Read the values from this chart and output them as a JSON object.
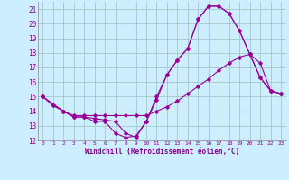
{
  "xlabel": "Windchill (Refroidissement éolien,°C)",
  "bg_color": "#cceeff",
  "grid_color": "#aacccc",
  "line_color": "#990099",
  "xlim": [
    -0.5,
    23.5
  ],
  "ylim": [
    12,
    21.5
  ],
  "xticks": [
    0,
    1,
    2,
    3,
    4,
    5,
    6,
    7,
    8,
    9,
    10,
    11,
    12,
    13,
    14,
    15,
    16,
    17,
    18,
    19,
    20,
    21,
    22,
    23
  ],
  "yticks": [
    12,
    13,
    14,
    15,
    16,
    17,
    18,
    19,
    20,
    21
  ],
  "lines": [
    {
      "x": [
        0,
        1,
        2,
        3,
        4,
        5,
        6,
        7,
        8,
        9,
        10,
        11,
        12,
        13,
        14,
        15,
        16,
        17,
        18,
        19,
        20,
        21,
        22,
        23
      ],
      "y": [
        15.0,
        14.4,
        14.0,
        13.6,
        13.6,
        13.3,
        13.3,
        12.5,
        12.2,
        12.3,
        13.3,
        15.0,
        16.5,
        17.5,
        18.3,
        20.3,
        21.2,
        21.2,
        20.7,
        19.5,
        17.9,
        16.3,
        15.4,
        15.2
      ]
    },
    {
      "x": [
        0,
        1,
        2,
        3,
        4,
        5,
        6,
        7,
        8,
        9,
        10,
        11,
        12,
        13,
        14,
        15,
        16,
        17,
        18,
        19,
        20,
        21,
        22,
        23
      ],
      "y": [
        15.0,
        14.4,
        14.0,
        13.7,
        13.7,
        13.7,
        13.7,
        13.7,
        13.7,
        13.7,
        13.7,
        14.0,
        14.3,
        14.7,
        15.2,
        15.7,
        16.2,
        16.8,
        17.3,
        17.7,
        17.9,
        17.3,
        15.4,
        15.2
      ]
    },
    {
      "x": [
        0,
        2,
        3,
        4,
        5,
        6,
        7,
        8,
        9,
        10,
        11,
        12,
        13,
        14,
        15,
        16,
        17,
        18,
        19,
        20,
        21,
        22,
        23
      ],
      "y": [
        15.0,
        14.0,
        13.6,
        13.6,
        13.5,
        13.4,
        13.3,
        12.5,
        12.2,
        13.3,
        14.8,
        16.5,
        17.5,
        18.3,
        20.3,
        21.2,
        21.2,
        20.7,
        19.5,
        17.9,
        16.3,
        15.4,
        15.2
      ]
    }
  ]
}
